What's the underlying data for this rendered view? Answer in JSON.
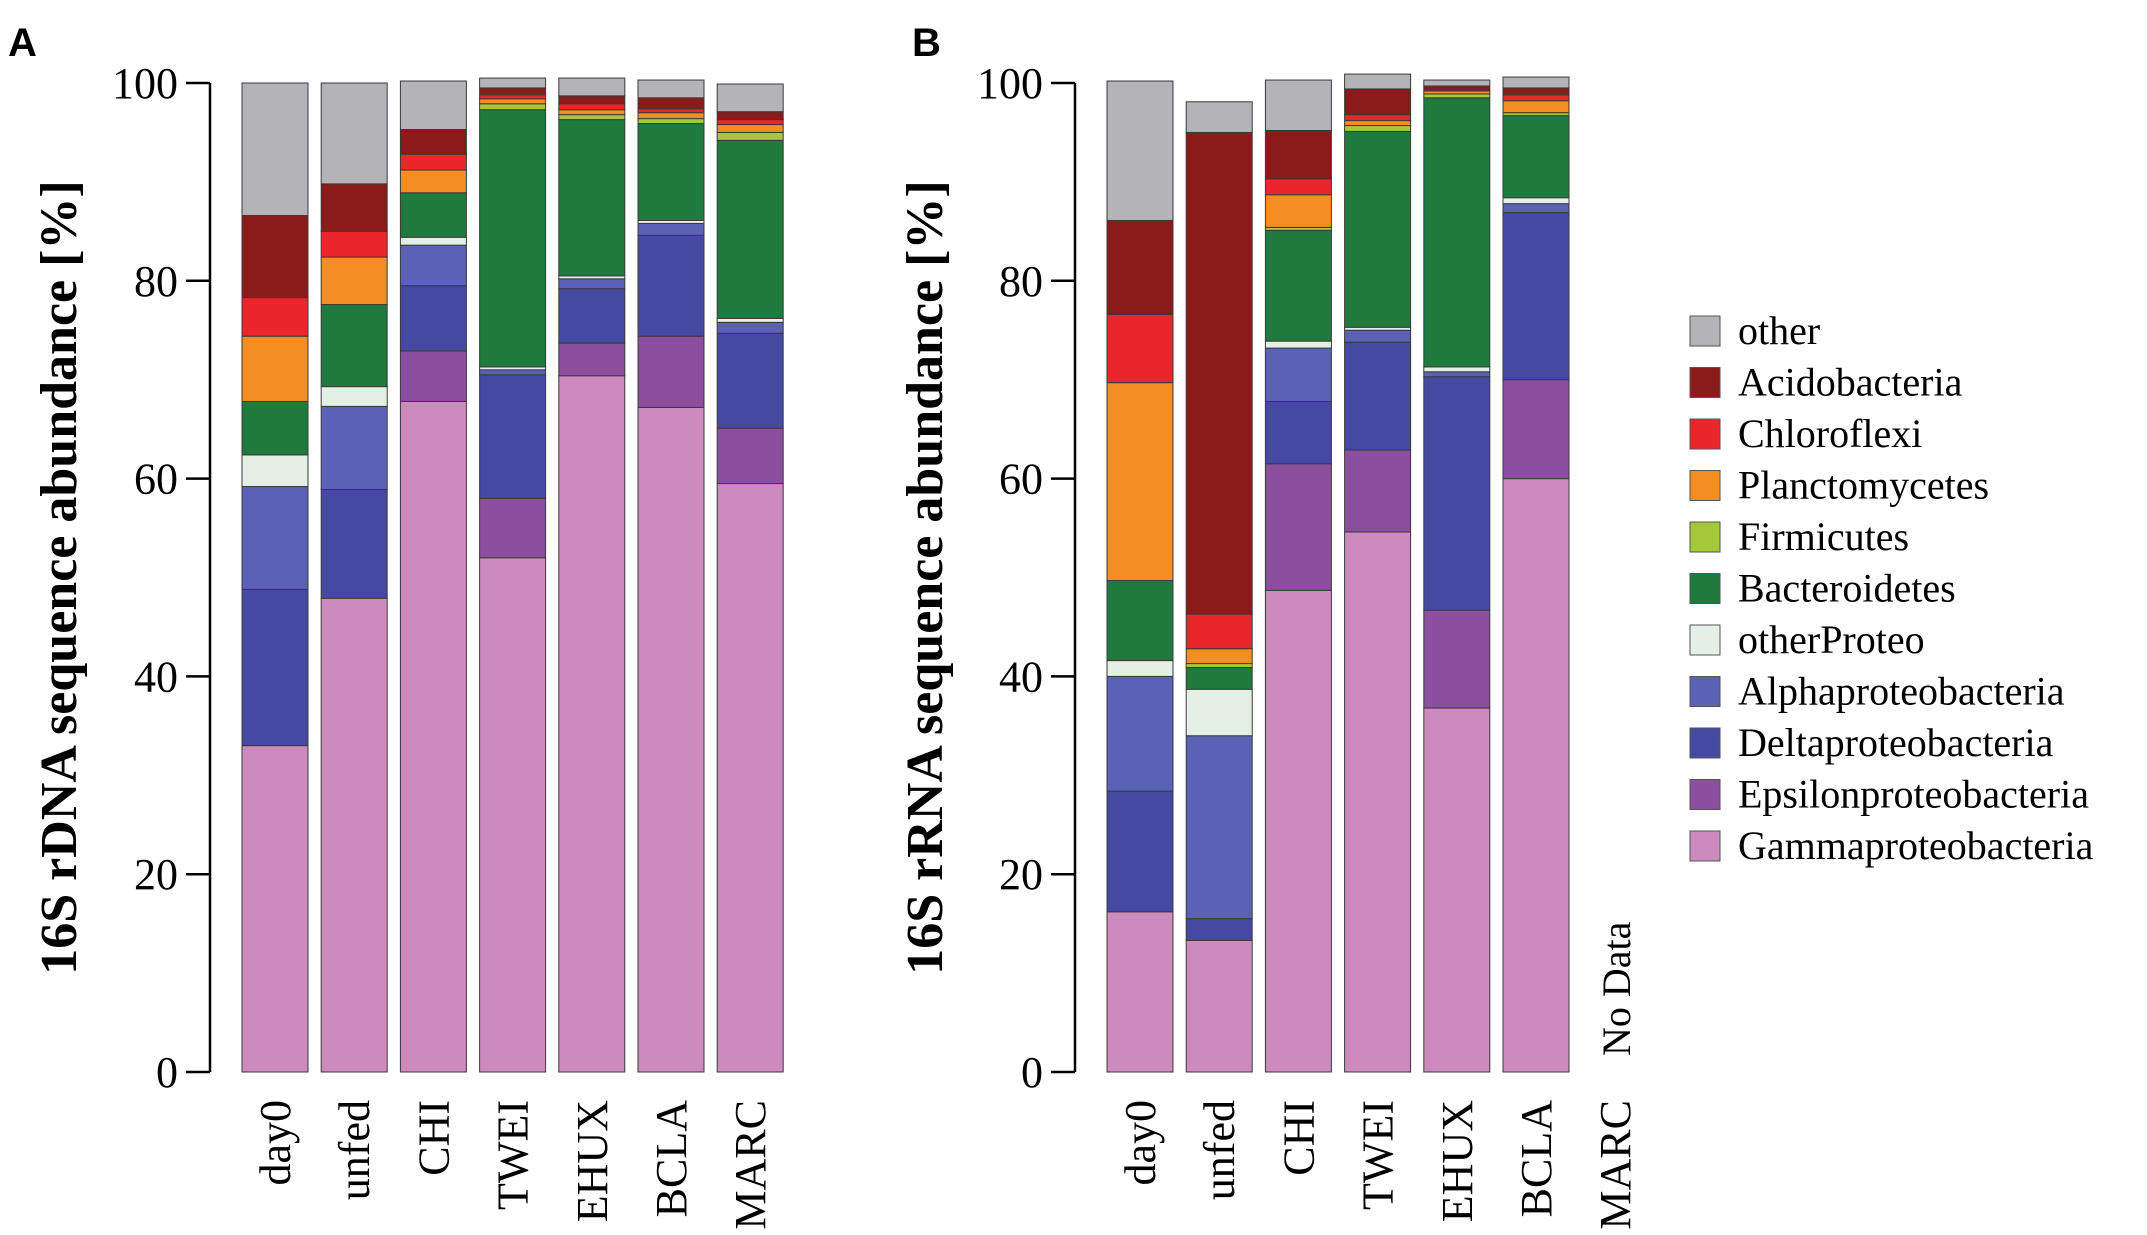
{
  "legend": [
    {
      "name": "other",
      "color": "#b4b4b8"
    },
    {
      "name": "Acidobacteria",
      "color": "#8b1a1a"
    },
    {
      "name": "Chloroflexi",
      "color": "#e8262c"
    },
    {
      "name": "Planctomycetes",
      "color": "#f58e22"
    },
    {
      "name": "Firmicutes",
      "color": "#a4c83a"
    },
    {
      "name": "Bacteroidetes",
      "color": "#1e7a3d"
    },
    {
      "name": "otherProteo",
      "color": "#e4efe6"
    },
    {
      "name": "Alphaproteobacteria",
      "color": "#5962b4"
    },
    {
      "name": "Deltaproteobacteria",
      "color": "#4549a2"
    },
    {
      "name": "Epsilonproteobacteria",
      "color": "#8c4f9f"
    },
    {
      "name": "Gammaproteobacteria",
      "color": "#cc8abe"
    }
  ],
  "chart_data": [
    {
      "panel": "A",
      "type": "bar",
      "stacked": true,
      "title": "",
      "xlabel": "",
      "ylabel": "16S rDNA sequence abundance [%]",
      "ylim": [
        0,
        100
      ],
      "yticks": [
        "0",
        "20",
        "40",
        "60",
        "80",
        "100"
      ],
      "categories": [
        "day0",
        "unfed",
        "CHI",
        "TWEI",
        "EHUX",
        "BCLA",
        "MARC"
      ],
      "series": [
        {
          "name": "Gammaproteobacteria",
          "values": [
            33.0,
            47.9,
            67.8,
            52.0,
            70.4,
            67.2,
            59.5
          ]
        },
        {
          "name": "Epsilonproteobacteria",
          "values": [
            0,
            0,
            5.1,
            6.0,
            3.3,
            7.2,
            5.6
          ]
        },
        {
          "name": "Deltaproteobacteria",
          "values": [
            15.8,
            11.0,
            6.6,
            12.5,
            5.5,
            10.2,
            9.6
          ]
        },
        {
          "name": "Alphaproteobacteria",
          "values": [
            10.4,
            8.4,
            4.1,
            0.5,
            1.0,
            1.2,
            1.1
          ]
        },
        {
          "name": "otherProteo",
          "values": [
            3.2,
            2.0,
            0.8,
            0.3,
            0.3,
            0.3,
            0.4
          ]
        },
        {
          "name": "Bacteroidetes",
          "values": [
            5.4,
            8.3,
            4.5,
            26.0,
            15.8,
            9.8,
            18.0
          ]
        },
        {
          "name": "Firmicutes",
          "values": [
            0,
            0,
            0,
            0.6,
            0.5,
            0.5,
            0.8
          ]
        },
        {
          "name": "Planctomycetes",
          "values": [
            6.6,
            4.8,
            2.3,
            0.5,
            0.5,
            0.6,
            0.8
          ]
        },
        {
          "name": "Chloroflexi",
          "values": [
            3.9,
            2.6,
            1.6,
            0.4,
            0.6,
            0.4,
            0.5
          ]
        },
        {
          "name": "Acidobacteria",
          "values": [
            8.3,
            4.8,
            2.5,
            0.7,
            0.8,
            1.1,
            0.8
          ]
        },
        {
          "name": "other",
          "values": [
            13.4,
            10.2,
            4.9,
            1.0,
            1.8,
            1.8,
            2.8
          ]
        }
      ]
    },
    {
      "panel": "B",
      "type": "bar",
      "stacked": true,
      "title": "",
      "xlabel": "",
      "ylabel": "16S rRNA sequence abundance [%]",
      "ylim": [
        0,
        100
      ],
      "yticks": [
        "0",
        "20",
        "40",
        "60",
        "80",
        "100"
      ],
      "categories": [
        "day0",
        "unfed",
        "CHI",
        "TWEI",
        "EHUX",
        "BCLA",
        "MARC"
      ],
      "no_data": {
        "category": "MARC",
        "label": "No Data"
      },
      "series": [
        {
          "name": "Gammaproteobacteria",
          "values": [
            16.2,
            13.3,
            48.7,
            54.6,
            36.8,
            60.0,
            null
          ]
        },
        {
          "name": "Epsilonproteobacteria",
          "values": [
            0,
            0,
            12.8,
            8.3,
            9.9,
            10.0,
            null
          ]
        },
        {
          "name": "Deltaproteobacteria",
          "values": [
            12.2,
            2.2,
            6.3,
            10.9,
            23.6,
            16.9,
            null
          ]
        },
        {
          "name": "Alphaproteobacteria",
          "values": [
            11.6,
            18.5,
            5.4,
            1.2,
            0.5,
            0.9,
            null
          ]
        },
        {
          "name": "otherProteo",
          "values": [
            1.6,
            4.7,
            0.7,
            0.3,
            0.5,
            0.6,
            null
          ]
        },
        {
          "name": "Bacteroidetes",
          "values": [
            8.1,
            2.2,
            11.2,
            19.8,
            27.2,
            8.3,
            null
          ]
        },
        {
          "name": "Firmicutes",
          "values": [
            0,
            0.4,
            0.3,
            0.6,
            0.4,
            0.3,
            null
          ]
        },
        {
          "name": "Planctomycetes",
          "values": [
            20.0,
            1.5,
            3.3,
            0.5,
            0.3,
            1.2,
            null
          ]
        },
        {
          "name": "Chloroflexi",
          "values": [
            6.9,
            3.5,
            1.6,
            0.6,
            0,
            0.6,
            null
          ]
        },
        {
          "name": "Acidobacteria",
          "values": [
            9.5,
            48.7,
            4.9,
            2.6,
            0.5,
            0.7,
            null
          ]
        },
        {
          "name": "other",
          "values": [
            14.1,
            3.1,
            5.1,
            1.5,
            0.6,
            1.1,
            null
          ]
        }
      ]
    }
  ]
}
